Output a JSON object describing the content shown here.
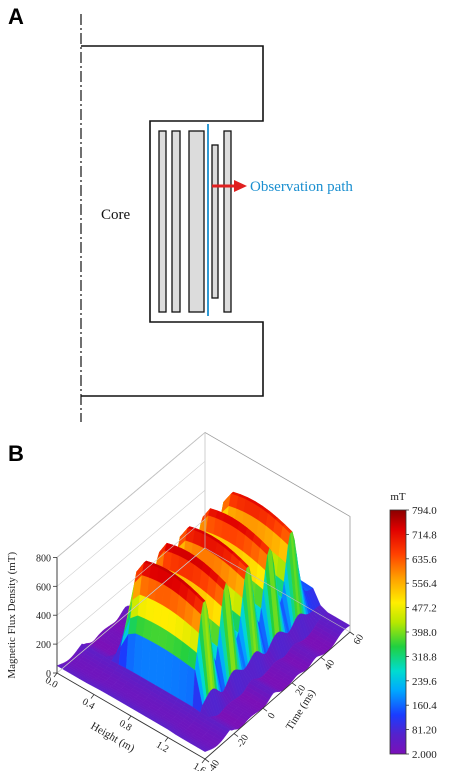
{
  "panels": {
    "a_label": "A",
    "b_label": "B"
  },
  "diagram": {
    "core_label": "Core",
    "observation_label": "Observation path",
    "observation_color": "#1a8fd0",
    "arrow_color": "#e02020"
  },
  "chart_data": {
    "type": "surface3d",
    "z_axis_label": "Magnetic Flux Density (mT)",
    "x_axis_label": "Height (m)",
    "y_axis_label": "Time (ms)",
    "x_ticks": [
      "0.0",
      "0.4",
      "0.8",
      "1.2",
      "1.6"
    ],
    "y_ticks": [
      "-40",
      "-20",
      "0",
      "20",
      "40",
      "60"
    ],
    "z_ticks": [
      "0",
      "200",
      "400",
      "600",
      "800"
    ],
    "xlim": [
      0,
      1.6
    ],
    "ylim": [
      -40,
      60
    ],
    "zlim": [
      0,
      800
    ],
    "peak_mT": 794.0,
    "colorbar": {
      "unit": "mT",
      "ticks": [
        "794.0",
        "714.8",
        "635.6",
        "556.4",
        "477.2",
        "398.0",
        "318.8",
        "239.6",
        "160.4",
        "81.20",
        "2.000"
      ],
      "min": 2.0,
      "max": 794.0
    }
  }
}
